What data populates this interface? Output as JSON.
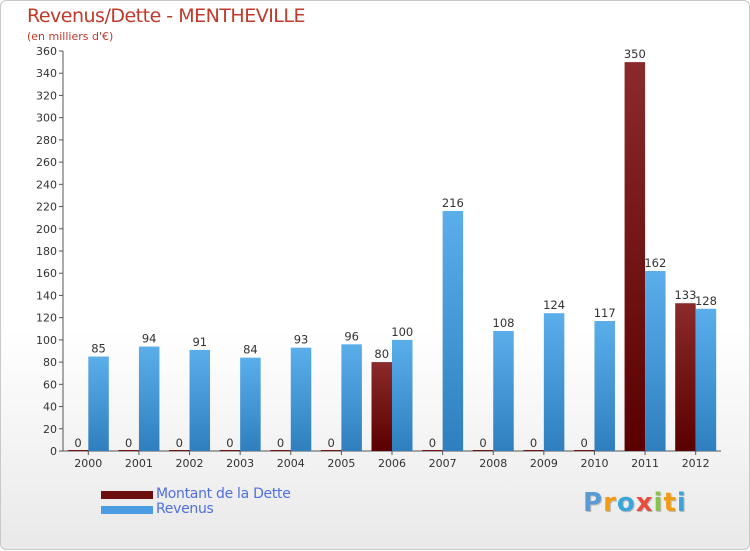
{
  "header": {
    "title": "Revenus/Dette - MENTHEVILLE",
    "subtitle": "(en milliers d'€)"
  },
  "chart_data": {
    "type": "bar",
    "title": "Revenus/Dette - MENTHEVILLE",
    "ylabel": "(en milliers d'€)",
    "xlabel": "",
    "ylim": [
      0,
      360
    ],
    "ytick_step": 20,
    "grid": false,
    "categories": [
      "2000",
      "2001",
      "2002",
      "2003",
      "2004",
      "2005",
      "2006",
      "2007",
      "2008",
      "2009",
      "2010",
      "2011",
      "2012"
    ],
    "series": [
      {
        "name": "Montant de la Dette",
        "color": "#7a1a1a",
        "values": [
          0,
          0,
          0,
          0,
          0,
          0,
          80,
          0,
          0,
          0,
          0,
          350,
          133
        ]
      },
      {
        "name": "Revenus",
        "color": "#4a9de0",
        "values": [
          85,
          94,
          91,
          84,
          93,
          96,
          100,
          216,
          108,
          124,
          117,
          162,
          128
        ]
      }
    ],
    "legend_position": "bottom-left"
  },
  "legend": {
    "items": [
      {
        "label": "Montant de la Dette",
        "color": "#6b0f0f"
      },
      {
        "label": "Revenus",
        "color": "#4a9de0"
      }
    ]
  },
  "logo": {
    "letters": [
      "P",
      "r",
      "o",
      "x",
      "i",
      "t",
      "i"
    ],
    "colors": [
      "#5b9bd5",
      "#f39c12",
      "#3aa6d8",
      "#e74c3c",
      "#8bc34a",
      "#f39c12",
      "#3aa6d8"
    ]
  }
}
